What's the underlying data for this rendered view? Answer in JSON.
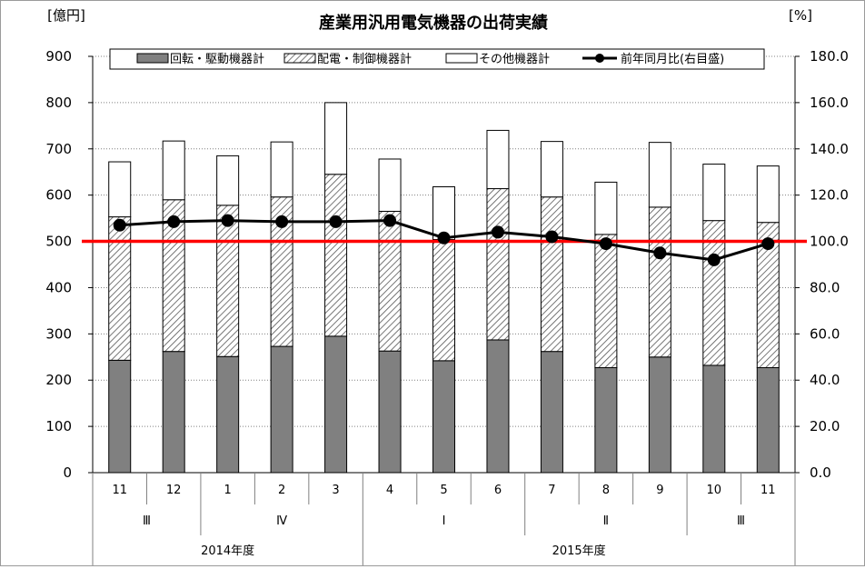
{
  "chart_data": {
    "type": "bar",
    "title": "産業用汎用電気機器の出荷実績",
    "ylabel_left": "[億円]",
    "ylabel_right": "[%]",
    "ylim_left": [
      0,
      900
    ],
    "ylim_right": [
      0,
      180
    ],
    "yticks_left": [
      "0",
      "100",
      "200",
      "300",
      "400",
      "500",
      "600",
      "700",
      "800",
      "900"
    ],
    "yticks_right": [
      "0.0",
      "20.0",
      "40.0",
      "60.0",
      "80.0",
      "100.0",
      "120.0",
      "140.0",
      "160.0",
      "180.0"
    ],
    "categories": [
      "11",
      "12",
      "1",
      "2",
      "3",
      "4",
      "5",
      "6",
      "7",
      "8",
      "9",
      "10",
      "11"
    ],
    "quarters": [
      {
        "label": "Ⅲ",
        "span": 2
      },
      {
        "label": "Ⅳ",
        "span": 3
      },
      {
        "label": "Ⅰ",
        "span": 3
      },
      {
        "label": "Ⅱ",
        "span": 3
      },
      {
        "label": "Ⅲ",
        "span": 2
      }
    ],
    "fiscal_years": [
      {
        "label": "2014年度",
        "span": 5
      },
      {
        "label": "2015年度",
        "span": 8
      }
    ],
    "series": [
      {
        "name": "回転・駆動機器計",
        "kind": "bar-stack",
        "color": "#808080",
        "values": [
          243,
          262,
          251,
          273,
          295,
          263,
          242,
          287,
          262,
          227,
          250,
          232,
          227
        ]
      },
      {
        "name": "配電・制御機器計",
        "kind": "bar-stack",
        "pattern": "hatch",
        "values": [
          310,
          328,
          327,
          323,
          350,
          302,
          262,
          327,
          334,
          288,
          324,
          313,
          314
        ]
      },
      {
        "name": "その他機器計",
        "kind": "bar-stack",
        "color": "#ffffff",
        "values": [
          119,
          127,
          107,
          119,
          155,
          113,
          114,
          126,
          120,
          113,
          140,
          122,
          122
        ]
      },
      {
        "name": "前年同月比(右目盛)",
        "kind": "line",
        "axis": "right",
        "color": "#000000",
        "values": [
          107.0,
          108.5,
          109.0,
          108.5,
          108.5,
          109.0,
          101.5,
          104.0,
          102.0,
          99.0,
          95.0,
          92.0,
          99.0
        ]
      }
    ],
    "reference_line": {
      "axis": "right",
      "value": 100.0,
      "color": "#ff0000"
    },
    "grid": true,
    "legend_position": "top"
  }
}
